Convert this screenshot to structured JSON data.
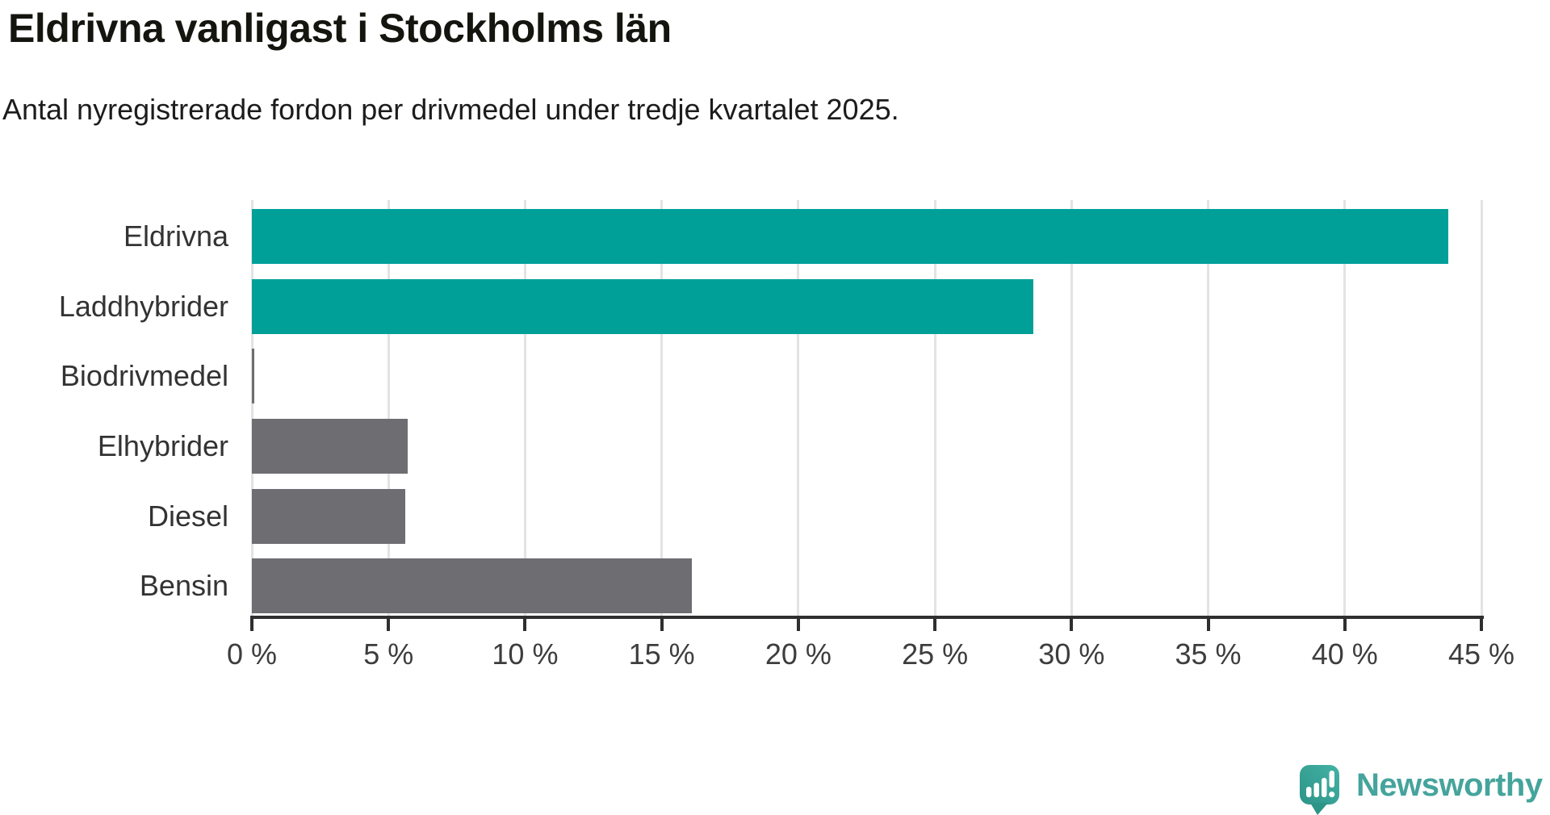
{
  "header": {
    "title": "Eldrivna vanligast i Stockholms län",
    "subtitle": "Antal nyregistrerade fordon per drivmedel under tredje kvartalet 2025."
  },
  "chart_data": {
    "type": "bar",
    "orientation": "horizontal",
    "title": "Eldrivna vanligast i Stockholms län",
    "subtitle": "Antal nyregistrerade fordon per drivmedel under tredje kvartalet 2025.",
    "categories": [
      "Eldrivna",
      "Laddhybrider",
      "Biodrivmedel",
      "Elhybrider",
      "Diesel",
      "Bensin"
    ],
    "values": [
      43.8,
      28.6,
      0.1,
      5.7,
      5.6,
      16.1
    ],
    "unit": "%",
    "bar_colors": [
      "#00a099",
      "#00a099",
      "#6e6e72",
      "#6e6e72",
      "#6e6e72",
      "#6e6e72"
    ],
    "highlight_color": "#00a099",
    "default_color": "#6e6e72",
    "xlim": [
      0,
      45
    ],
    "x_ticks": [
      0,
      5,
      10,
      15,
      20,
      25,
      30,
      35,
      40,
      45
    ],
    "x_tick_labels": [
      "0 %",
      "5 %",
      "10 %",
      "15 %",
      "20 %",
      "25 %",
      "30 %",
      "35 %",
      "40 %",
      "45 %"
    ],
    "xlabel": "",
    "ylabel": "",
    "grid": "vertical",
    "legend": "none"
  },
  "branding": {
    "name": "Newsworthy",
    "text_color": "#45a49c",
    "logo_color": "#38a094"
  }
}
